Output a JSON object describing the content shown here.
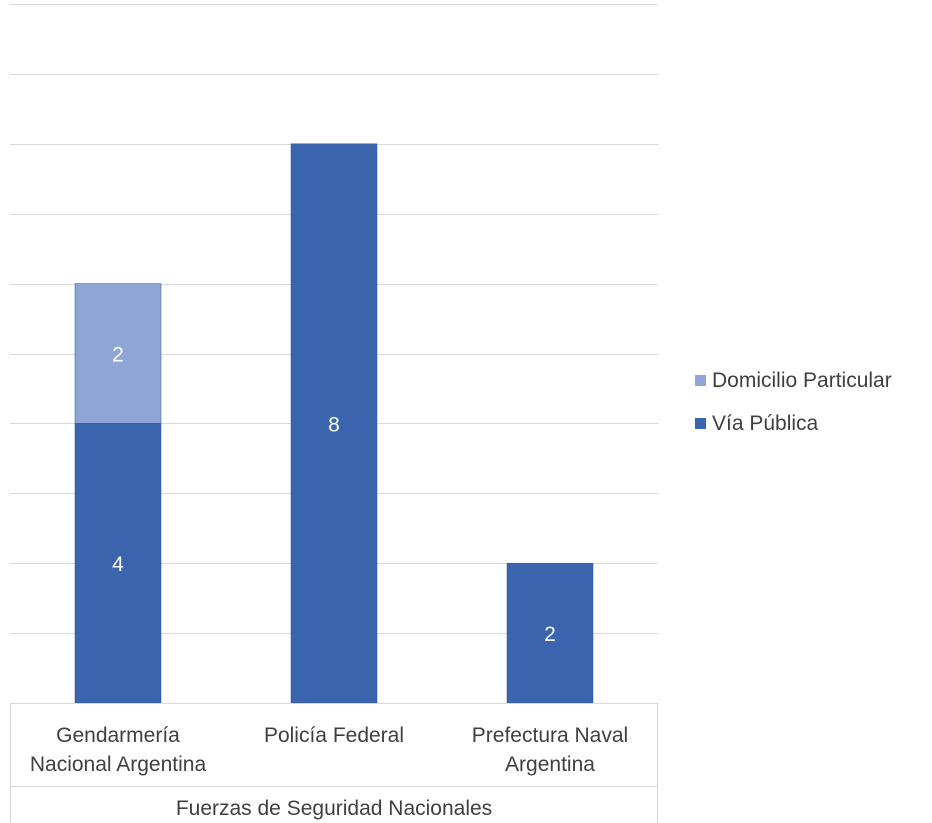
{
  "chart_data": {
    "type": "bar",
    "stacked": true,
    "categories": [
      [
        "Gendarmería",
        "Nacional Argentina"
      ],
      [
        "Policía Federal"
      ],
      [
        "Prefectura Naval",
        "Argentina"
      ]
    ],
    "group_label": "Fuerzas de Seguridad Nacionales",
    "series": [
      {
        "name": "Vía Pública",
        "values": [
          4,
          8,
          2
        ],
        "color": "#3a64ad"
      },
      {
        "name": "Domicilio Particular",
        "values": [
          2,
          0,
          0
        ],
        "color": "#8fa5d6"
      }
    ],
    "legend_placement": "right",
    "grid": true,
    "colors": {
      "gridline": "#d9d9d9",
      "axis_text": "#404040",
      "bar_outline": "#2f5597",
      "data_label": "#ffffff"
    }
  }
}
